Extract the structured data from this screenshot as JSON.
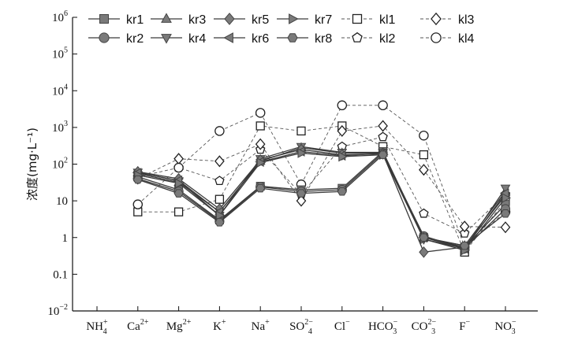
{
  "chart_data": {
    "type": "line",
    "ylabel": "浓度(mg·L⁻¹)",
    "yscale": "log",
    "ylim": [
      0.01,
      1000000
    ],
    "yticks": [
      {
        "value": 1000000,
        "base": "10",
        "exp": "6"
      },
      {
        "value": 100000,
        "base": "10",
        "exp": "5"
      },
      {
        "value": 10000,
        "base": "10",
        "exp": "4"
      },
      {
        "value": 1000,
        "base": "10",
        "exp": "3"
      },
      {
        "value": 100,
        "base": "10",
        "exp": "2"
      },
      {
        "value": 10,
        "base": "10",
        "exp": ""
      },
      {
        "value": 1,
        "base": "1",
        "exp": ""
      },
      {
        "value": 0.1,
        "base": "0.1",
        "exp": ""
      },
      {
        "value": 0.01,
        "base": "10",
        "exp": "−2"
      }
    ],
    "categories": [
      {
        "base": "NH",
        "sub": "4",
        "sup": "+"
      },
      {
        "base": "Ca",
        "sub": "",
        "sup": "2+"
      },
      {
        "base": "Mg",
        "sub": "",
        "sup": "2+"
      },
      {
        "base": "K",
        "sub": "",
        "sup": "+"
      },
      {
        "base": "Na",
        "sub": "",
        "sup": "+"
      },
      {
        "base": "SO",
        "sub": "4",
        "sup": "2−"
      },
      {
        "base": "Cl",
        "sub": "",
        "sup": "−"
      },
      {
        "base": "HCO",
        "sub": "3",
        "sup": "−"
      },
      {
        "base": "CO",
        "sub": "3",
        "sup": "2−"
      },
      {
        "base": "F",
        "sub": "",
        "sup": "−"
      },
      {
        "base": "NO",
        "sub": "3",
        "sup": "−"
      }
    ],
    "series": [
      {
        "name": "kr1",
        "marker": "square-filled",
        "dash": "solid",
        "values": [
          null,
          45,
          20,
          3,
          25,
          20,
          22,
          220,
          1.0,
          0.55,
          8
        ]
      },
      {
        "name": "kr2",
        "marker": "circle-filled",
        "dash": "solid",
        "values": [
          null,
          40,
          18,
          2.8,
          24,
          18,
          20,
          200,
          1.1,
          0.5,
          6
        ]
      },
      {
        "name": "kr3",
        "marker": "triangle-up-filled",
        "dash": "solid",
        "values": [
          null,
          55,
          32,
          5,
          120,
          280,
          200,
          200,
          1.0,
          0.6,
          18
        ]
      },
      {
        "name": "kr4",
        "marker": "triangle-down-filled",
        "dash": "solid",
        "values": [
          null,
          60,
          35,
          4,
          140,
          300,
          210,
          210,
          0.9,
          0.5,
          22
        ]
      },
      {
        "name": "kr5",
        "marker": "diamond-filled",
        "dash": "solid",
        "values": [
          null,
          62,
          40,
          6,
          130,
          250,
          180,
          190,
          0.4,
          0.55,
          14
        ]
      },
      {
        "name": "kr6",
        "marker": "triangle-left-filled",
        "dash": "solid",
        "values": [
          null,
          58,
          36,
          5,
          115,
          220,
          170,
          195,
          1.0,
          0.5,
          16
        ]
      },
      {
        "name": "kr7",
        "marker": "triangle-right-filled",
        "dash": "solid",
        "values": [
          null,
          50,
          30,
          4,
          110,
          200,
          160,
          180,
          0.9,
          0.45,
          12
        ]
      },
      {
        "name": "kr8",
        "marker": "hexagon-filled",
        "dash": "solid",
        "values": [
          null,
          38,
          16,
          2.6,
          22,
          16,
          18,
          180,
          1.0,
          0.6,
          4.5
        ]
      },
      {
        "name": "kl1",
        "marker": "square-open",
        "dash": "dashed",
        "values": [
          null,
          5,
          5,
          11,
          1100,
          800,
          1100,
          300,
          180,
          0.4,
          10
        ]
      },
      {
        "name": "kl2",
        "marker": "pentagon-open",
        "dash": "dashed",
        "values": [
          null,
          45,
          80,
          35,
          250,
          15,
          300,
          550,
          4.5,
          1.3,
          15
        ]
      },
      {
        "name": "kl3",
        "marker": "diamond-open",
        "dash": "dashed",
        "values": [
          null,
          40,
          140,
          120,
          350,
          10,
          800,
          1100,
          70,
          2.0,
          1.9
        ]
      },
      {
        "name": "kl4",
        "marker": "circle-open",
        "dash": "dashed",
        "values": [
          null,
          8,
          80,
          800,
          2500,
          28,
          4000,
          4000,
          600,
          0.55,
          5
        ]
      }
    ],
    "legend": {
      "placement": "top",
      "columns": 6,
      "rows": 2
    }
  }
}
